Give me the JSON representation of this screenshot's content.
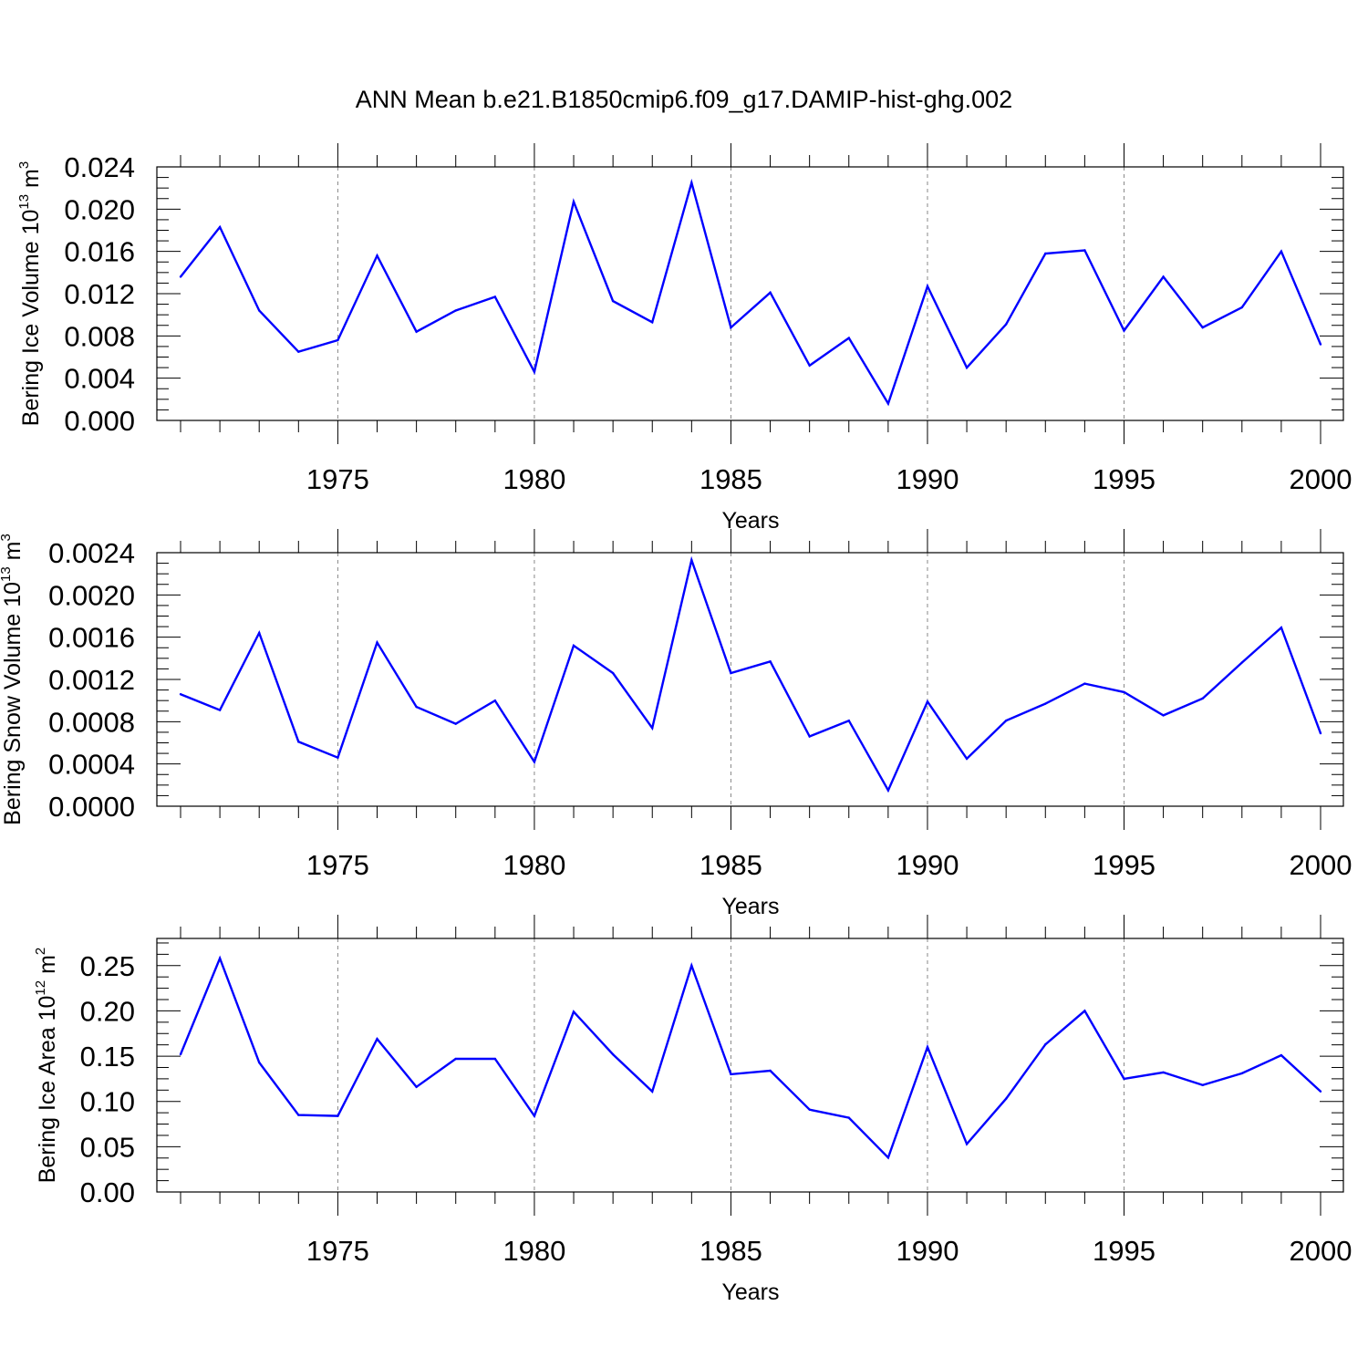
{
  "title": "ANN Mean b.e21.B1850cmip6.f09_g17.DAMIP-hist-ghg.002",
  "line_color": "#0000ff",
  "chart_data": [
    {
      "type": "line",
      "ylabel": {
        "main": "Bering Ice Volume 10",
        "exp": "13",
        "unit": " m",
        "unit_exp": "3"
      },
      "xlabel": "Years",
      "xlim": [
        1971,
        2000
      ],
      "ylim": [
        0,
        0.024
      ],
      "yticks": [
        {
          "v": 0.0,
          "label": "0.000"
        },
        {
          "v": 0.004,
          "label": "0.004"
        },
        {
          "v": 0.008,
          "label": "0.008"
        },
        {
          "v": 0.012,
          "label": "0.012"
        },
        {
          "v": 0.016,
          "label": "0.016"
        },
        {
          "v": 0.02,
          "label": "0.020"
        },
        {
          "v": 0.024,
          "label": "0.024"
        }
      ],
      "xticks": [
        1975,
        1980,
        1985,
        1990,
        1995,
        2000
      ],
      "grid_x": true,
      "x": [
        1971,
        1972,
        1973,
        1974,
        1975,
        1976,
        1977,
        1978,
        1979,
        1980,
        1981,
        1982,
        1983,
        1984,
        1985,
        1986,
        1987,
        1988,
        1989,
        1990,
        1991,
        1992,
        1993,
        1994,
        1995,
        1996,
        1997,
        1998,
        1999,
        2000
      ],
      "values": [
        0.0136,
        0.0183,
        0.0104,
        0.0065,
        0.0076,
        0.0156,
        0.0084,
        0.0104,
        0.0117,
        0.0046,
        0.0207,
        0.0113,
        0.0093,
        0.0225,
        0.0088,
        0.0121,
        0.0052,
        0.0078,
        0.0016,
        0.0127,
        0.005,
        0.0091,
        0.0158,
        0.0161,
        0.0085,
        0.0136,
        0.0088,
        0.0107,
        0.016,
        0.0072
      ]
    },
    {
      "type": "line",
      "ylabel": {
        "main": "Bering Snow Volume 10",
        "exp": "13",
        "unit": " m",
        "unit_exp": "3"
      },
      "xlabel": "Years",
      "xlim": [
        1971,
        2000
      ],
      "ylim": [
        0,
        0.0024
      ],
      "yticks": [
        {
          "v": 0.0,
          "label": "0.0000"
        },
        {
          "v": 0.0004,
          "label": "0.0004"
        },
        {
          "v": 0.0008,
          "label": "0.0008"
        },
        {
          "v": 0.0012,
          "label": "0.0012"
        },
        {
          "v": 0.0016,
          "label": "0.0016"
        },
        {
          "v": 0.002,
          "label": "0.0020"
        },
        {
          "v": 0.0024,
          "label": "0.0024"
        }
      ],
      "xticks": [
        1975,
        1980,
        1985,
        1990,
        1995,
        2000
      ],
      "grid_x": true,
      "x": [
        1971,
        1972,
        1973,
        1974,
        1975,
        1976,
        1977,
        1978,
        1979,
        1980,
        1981,
        1982,
        1983,
        1984,
        1985,
        1986,
        1987,
        1988,
        1989,
        1990,
        1991,
        1992,
        1993,
        1994,
        1995,
        1996,
        1997,
        1998,
        1999,
        2000
      ],
      "values": [
        0.00106,
        0.00091,
        0.00164,
        0.00061,
        0.00046,
        0.00155,
        0.00094,
        0.00078,
        0.001,
        0.00042,
        0.00152,
        0.00126,
        0.00074,
        0.00233,
        0.00126,
        0.00137,
        0.00066,
        0.00081,
        0.00015,
        0.00099,
        0.00045,
        0.00081,
        0.00097,
        0.00116,
        0.00108,
        0.00086,
        0.00102,
        0.00136,
        0.00169,
        0.00069
      ]
    },
    {
      "type": "line",
      "ylabel": {
        "main": "Bering Ice Area 10",
        "exp": "12",
        "unit": " m",
        "unit_exp": "2"
      },
      "xlabel": "Years",
      "xlim": [
        1971,
        2000
      ],
      "ylim": [
        0,
        0.28
      ],
      "yticks": [
        {
          "v": 0.0,
          "label": "0.00"
        },
        {
          "v": 0.05,
          "label": "0.05"
        },
        {
          "v": 0.1,
          "label": "0.10"
        },
        {
          "v": 0.15,
          "label": "0.15"
        },
        {
          "v": 0.2,
          "label": "0.20"
        },
        {
          "v": 0.25,
          "label": "0.25"
        }
      ],
      "xticks": [
        1975,
        1980,
        1985,
        1990,
        1995,
        2000
      ],
      "grid_x": true,
      "x": [
        1971,
        1972,
        1973,
        1974,
        1975,
        1976,
        1977,
        1978,
        1979,
        1980,
        1981,
        1982,
        1983,
        1984,
        1985,
        1986,
        1987,
        1988,
        1989,
        1990,
        1991,
        1992,
        1993,
        1994,
        1995,
        1996,
        1997,
        1998,
        1999,
        2000
      ],
      "values": [
        0.152,
        0.258,
        0.143,
        0.085,
        0.084,
        0.169,
        0.116,
        0.147,
        0.147,
        0.084,
        0.199,
        0.152,
        0.111,
        0.25,
        0.13,
        0.134,
        0.091,
        0.082,
        0.038,
        0.16,
        0.053,
        0.103,
        0.163,
        0.2,
        0.125,
        0.132,
        0.118,
        0.131,
        0.151,
        0.111
      ]
    }
  ]
}
